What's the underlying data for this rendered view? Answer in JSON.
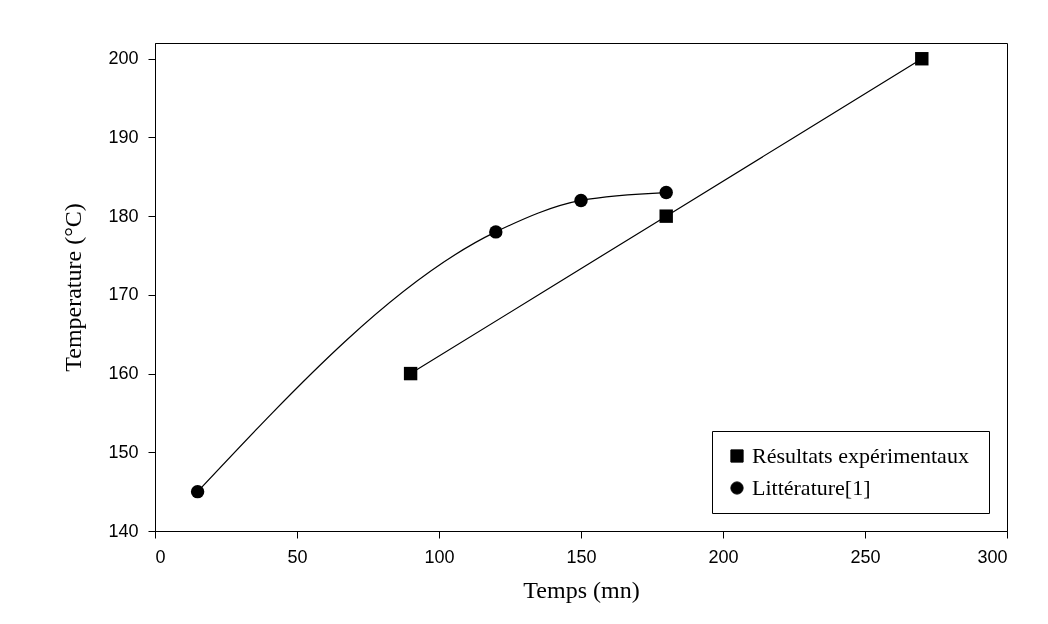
{
  "chart_data": {
    "type": "line",
    "xlabel": "Temps (mn)",
    "ylabel": "Temperature (°C)",
    "xlim": [
      0,
      300
    ],
    "ylim": [
      140,
      202
    ],
    "xticks": [
      0,
      50,
      100,
      150,
      200,
      250,
      300
    ],
    "yticks": [
      140,
      150,
      160,
      170,
      180,
      190,
      200
    ],
    "grid": false,
    "legend": "bottom right",
    "line_style": "solid",
    "series": [
      {
        "name": "Résultats  expérimentaux",
        "color": "#000000",
        "marker": "square",
        "x": [
          90,
          180,
          270
        ],
        "values": [
          160,
          180,
          200
        ]
      },
      {
        "name": " Littérature[1]",
        "color": "#000000",
        "marker": "circle",
        "x": [
          15,
          120,
          150,
          180
        ],
        "values": [
          145,
          178,
          182,
          183
        ]
      }
    ]
  }
}
